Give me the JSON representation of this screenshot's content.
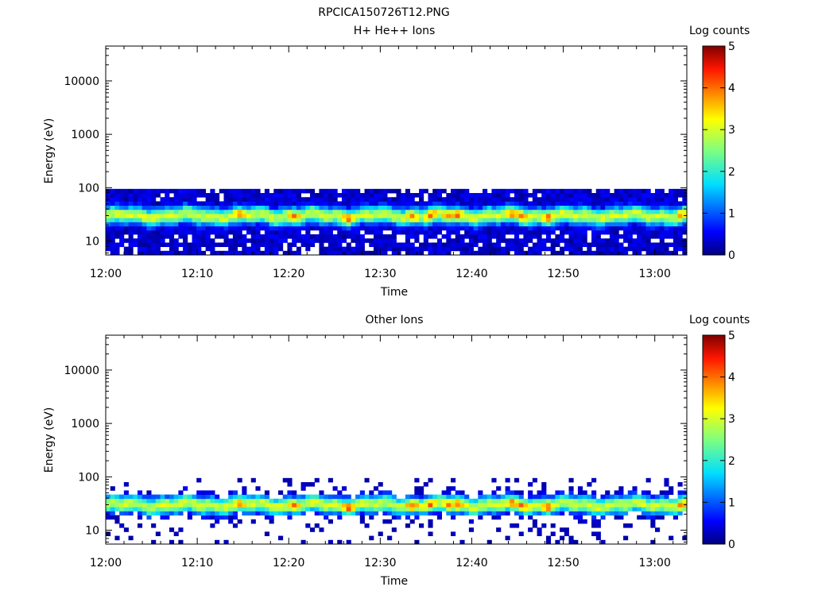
{
  "figure_title": "RPCICA150726T12.PNG",
  "chart_data": [
    {
      "type": "heatmap",
      "title": "H+ He++ Ions",
      "xlabel": "Time",
      "ylabel": "Energy (eV)",
      "x_ticks": [
        "12:00",
        "12:10",
        "12:20",
        "12:30",
        "12:40",
        "12:50",
        "13:00"
      ],
      "x_tick_minutes": [
        0,
        10,
        20,
        30,
        40,
        50,
        60
      ],
      "xlim_minutes": [
        0,
        63.5
      ],
      "y_scale": "log",
      "ylim": [
        5.5,
        45000
      ],
      "y_ticks": [
        "10",
        "100",
        "1000",
        "10000"
      ],
      "y_tick_values": [
        10,
        100,
        1000,
        10000
      ],
      "colorbar": {
        "label": "Log counts",
        "range": [
          0,
          5
        ],
        "ticks": [
          "0",
          "1",
          "2",
          "3",
          "4",
          "5"
        ]
      },
      "data_energy_range_eV": [
        5.5,
        95
      ],
      "band_peak_energy_eV": 30,
      "peak_log_counts": 4.2,
      "density": "dense"
    },
    {
      "type": "heatmap",
      "title": "Other Ions",
      "xlabel": "Time",
      "ylabel": "Energy (eV)",
      "x_ticks": [
        "12:00",
        "12:10",
        "12:20",
        "12:30",
        "12:40",
        "12:50",
        "13:00"
      ],
      "x_tick_minutes": [
        0,
        10,
        20,
        30,
        40,
        50,
        60
      ],
      "xlim_minutes": [
        0,
        63.5
      ],
      "y_scale": "log",
      "ylim": [
        5.5,
        45000
      ],
      "y_ticks": [
        "10",
        "100",
        "1000",
        "10000"
      ],
      "y_tick_values": [
        10,
        100,
        1000,
        10000
      ],
      "colorbar": {
        "label": "Log counts",
        "range": [
          0,
          5
        ],
        "ticks": [
          "0",
          "1",
          "2",
          "3",
          "4",
          "5"
        ]
      },
      "data_energy_range_eV": [
        5.5,
        95
      ],
      "band_peak_energy_eV": 30,
      "peak_log_counts": 4.2,
      "density": "sparse"
    }
  ]
}
